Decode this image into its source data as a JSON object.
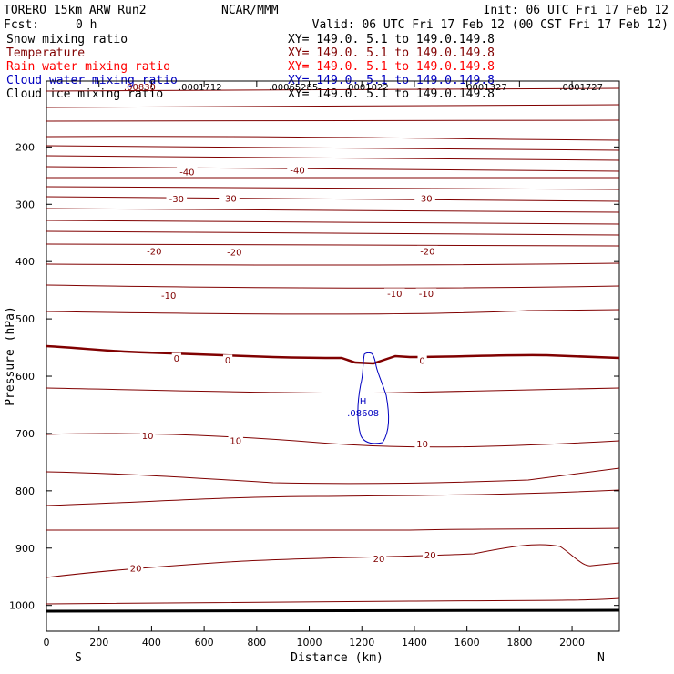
{
  "header": {
    "model": "TORERO  15km ARW   Run2",
    "org": "NCAR/MMM",
    "init": "Init: 06 UTC Fri 17 Feb 12",
    "fcst_label": "Fcst:",
    "fcst_value": "0 h",
    "valid": "Valid: 06 UTC Fri 17 Feb 12 (00 CST Fri 17 Feb 12)"
  },
  "legend": [
    {
      "name": "Snow mixing ratio",
      "xy": "XY= 149.0.  5.1 to 149.0.149.8",
      "color": "#000000"
    },
    {
      "name": "Temperature",
      "xy": "XY= 149.0.  5.1 to 149.0.149.8",
      "color": "#800000"
    },
    {
      "name": "Rain water mixing ratio",
      "xy": "XY= 149.0.  5.1 to 149.0.149.8",
      "color": "#ff0000"
    },
    {
      "name": "Cloud water mixing ratio",
      "xy": "XY= 149.0.  5.1 to 149.0.149.8",
      "color": "#0000c0"
    },
    {
      "name": "Cloud ice mixing ratio",
      "xy": "XY= 149.0.  5.1 to 149.0.149.8",
      "color": "#000000"
    }
  ],
  "chart_data": {
    "type": "contour",
    "xlabel": "Distance (km)",
    "ylabel": "Pressure (hPa)",
    "xlim": [
      0,
      2180
    ],
    "ylim": [
      1045,
      85
    ],
    "x_ticks": [
      0,
      200,
      400,
      600,
      800,
      1000,
      1200,
      1400,
      1600,
      1800,
      2000
    ],
    "y_ticks": [
      200,
      300,
      400,
      500,
      600,
      700,
      800,
      900,
      1000
    ],
    "end_labels": {
      "left": "S",
      "right": "N"
    },
    "temperature_contour_labels": [
      {
        "text": "-40",
        "x": 535,
        "p": 244
      },
      {
        "text": "-40",
        "x": 955,
        "p": 241
      },
      {
        "text": "-30",
        "x": 495,
        "p": 291
      },
      {
        "text": "-30",
        "x": 695,
        "p": 290
      },
      {
        "text": "-30",
        "x": 1440,
        "p": 290
      },
      {
        "text": "-20",
        "x": 410,
        "p": 382
      },
      {
        "text": "-20",
        "x": 715,
        "p": 384
      },
      {
        "text": "-20",
        "x": 1450,
        "p": 382
      },
      {
        "text": "-10",
        "x": 465,
        "p": 459
      },
      {
        "text": "-10",
        "x": 1325,
        "p": 456
      },
      {
        "text": "-10",
        "x": 1445,
        "p": 456
      },
      {
        "text": "0",
        "x": 495,
        "p": 569
      },
      {
        "text": "0",
        "x": 690,
        "p": 572
      },
      {
        "text": "0",
        "x": 1430,
        "p": 573
      },
      {
        "text": "10",
        "x": 385,
        "p": 704
      },
      {
        "text": "10",
        "x": 720,
        "p": 713
      },
      {
        "text": "10",
        "x": 1430,
        "p": 718
      },
      {
        "text": "20",
        "x": 340,
        "p": 935
      },
      {
        "text": "20",
        "x": 1265,
        "p": 919
      },
      {
        "text": "20",
        "x": 1460,
        "p": 912
      }
    ],
    "top_values": [
      {
        "text": ".00830",
        "x": 355,
        "color": "#800000"
      },
      {
        "text": ".0001712",
        "x": 585,
        "color": "#000000"
      },
      {
        "text": ".00065285",
        "x": 940,
        "color": "#000000"
      },
      {
        "text": "0001022",
        "x": 1225,
        "color": "#000000"
      },
      {
        "text": ".0001327",
        "x": 1670,
        "color": "#000000"
      },
      {
        "text": ".0001727",
        "x": 2035,
        "color": "#000000"
      }
    ],
    "cloud_water_max": {
      "marker": "H",
      "value": ".08608",
      "x": 1205,
      "p": 665
    }
  }
}
